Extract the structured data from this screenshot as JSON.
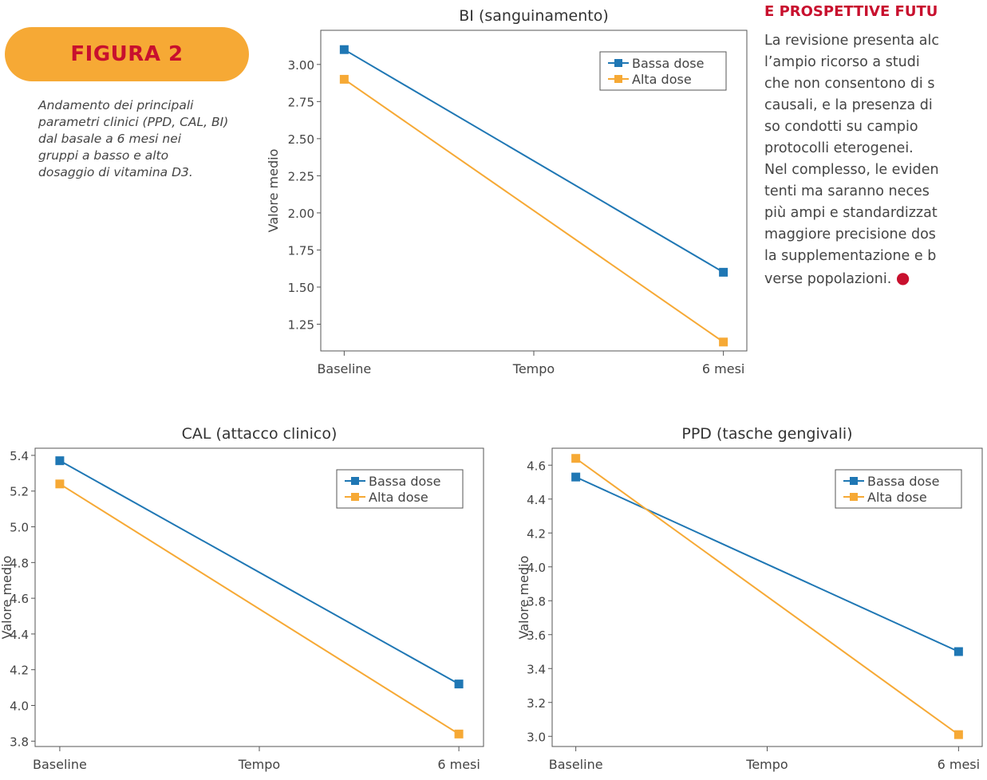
{
  "figure": {
    "badge": "FIGURA 2",
    "caption_lines": [
      "Andamento dei principali",
      "parametri clinici (PPD, CAL, BI)",
      "dal basale a 6 mesi nei",
      "gruppi a basso  e alto",
      "dosaggio di vitamina D3."
    ]
  },
  "side_text": {
    "title": "E PROSPETTIVE FUTU",
    "lines": [
      "La revisione presenta alc",
      "l’ampio ricorso a studi",
      "che non consentono di s",
      "causali, e la presenza di",
      "so condotti su campio",
      "protocolli eterogenei.",
      "Nel complesso, le eviden",
      "tenti ma saranno neces",
      "più ampi e standardizzat",
      "maggiore precisione dos",
      "la supplementazione e b",
      "verse popolazioni."
    ]
  },
  "colors": {
    "bassa": "#1f77b4",
    "alta": "#f6a935",
    "axis": "#555555",
    "accent": "#c8102e",
    "badge": "#f6a935"
  },
  "chart_data": [
    {
      "type": "line",
      "title": "BI (sanguinamento)",
      "xlabel": "Tempo",
      "ylabel": "Valore medio",
      "categories": [
        "Baseline",
        "6 mesi"
      ],
      "yticks": [
        1.25,
        1.5,
        1.75,
        2.0,
        2.25,
        2.5,
        2.75,
        3.0
      ],
      "ylim": [
        1.07,
        3.23
      ],
      "legend": "top-right",
      "series": [
        {
          "name": "Bassa dose",
          "values": [
            3.1,
            1.6
          ]
        },
        {
          "name": "Alta dose",
          "values": [
            2.9,
            1.13
          ]
        }
      ]
    },
    {
      "type": "line",
      "title": "CAL (attacco clinico)",
      "xlabel": "Tempo",
      "ylabel": "Valore medio",
      "categories": [
        "Baseline",
        "6 mesi"
      ],
      "yticks": [
        3.8,
        4.0,
        4.2,
        4.4,
        4.6,
        4.8,
        5.0,
        5.2,
        5.4
      ],
      "ylim": [
        3.77,
        5.44
      ],
      "legend": "top-right",
      "series": [
        {
          "name": "Bassa dose",
          "values": [
            5.37,
            4.12
          ]
        },
        {
          "name": "Alta dose",
          "values": [
            5.24,
            3.84
          ]
        }
      ]
    },
    {
      "type": "line",
      "title": "PPD (tasche gengivali)",
      "xlabel": "Tempo",
      "ylabel": "Valore medio",
      "categories": [
        "Baseline",
        "6 mesi"
      ],
      "yticks": [
        3.0,
        3.2,
        3.4,
        3.6,
        3.8,
        4.0,
        4.2,
        4.4,
        4.6
      ],
      "ylim": [
        2.94,
        4.7
      ],
      "legend": "top-right",
      "series": [
        {
          "name": "Bassa dose",
          "values": [
            4.53,
            3.5
          ]
        },
        {
          "name": "Alta dose",
          "values": [
            4.64,
            3.01
          ]
        }
      ]
    }
  ]
}
